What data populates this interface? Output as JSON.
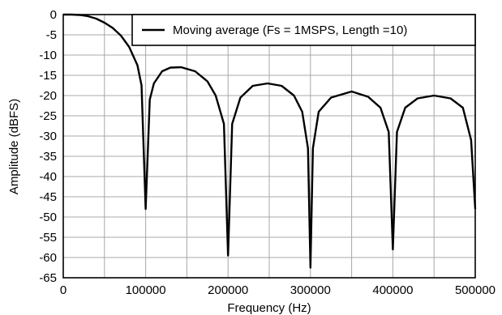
{
  "chart_data": {
    "type": "line",
    "title": "",
    "xlabel": "Frequency (Hz)",
    "ylabel": "Amplitude (dBFS)",
    "xlim": [
      0,
      500000
    ],
    "ylim": [
      -65,
      0
    ],
    "x_ticks": [
      0,
      100000,
      200000,
      300000,
      400000,
      500000
    ],
    "x_tick_labels": [
      "0",
      "100000",
      "200000",
      "300000",
      "400000",
      "500000"
    ],
    "x_minor_grid_step": 50000,
    "y_ticks": [
      0,
      -5,
      -10,
      -15,
      -20,
      -25,
      -30,
      -35,
      -40,
      -45,
      -50,
      -55,
      -60,
      -65
    ],
    "y_tick_labels": [
      "0",
      "-5",
      "-10",
      "-15",
      "-20",
      "-25",
      "-30",
      "-35",
      "-40",
      "-45",
      "-50",
      "-55",
      "-60",
      "-65"
    ],
    "grid": true,
    "legend_position": "top-right",
    "series": [
      {
        "name": "Moving average (Fs = 1MSPS, Length =10)",
        "color": "#000000",
        "x": [
          0,
          10000,
          20000,
          30000,
          40000,
          50000,
          60000,
          70000,
          80000,
          90000,
          95000,
          100000,
          105000,
          110000,
          120000,
          130000,
          143000,
          160000,
          175000,
          185000,
          195000,
          200000,
          205000,
          215000,
          230000,
          248000,
          265000,
          280000,
          290000,
          297000,
          300000,
          303000,
          310000,
          325000,
          350000,
          370000,
          385000,
          395000,
          400000,
          405000,
          415000,
          430000,
          450000,
          470000,
          485000,
          495000,
          500000
        ],
        "y": [
          0,
          0,
          -0.1,
          -0.4,
          -1,
          -2,
          -3.3,
          -5.2,
          -8,
          -12.5,
          -17.5,
          -48,
          -21,
          -17,
          -14,
          -13.1,
          -13,
          -14,
          -16.5,
          -20,
          -27,
          -59.5,
          -27,
          -20.5,
          -17.6,
          -17,
          -17.6,
          -20,
          -24,
          -33,
          -62.5,
          -33,
          -24,
          -20.5,
          -19,
          -20.3,
          -23,
          -29,
          -58,
          -29,
          -23,
          -20.7,
          -20,
          -20.7,
          -23,
          -31,
          -48
        ]
      }
    ]
  }
}
